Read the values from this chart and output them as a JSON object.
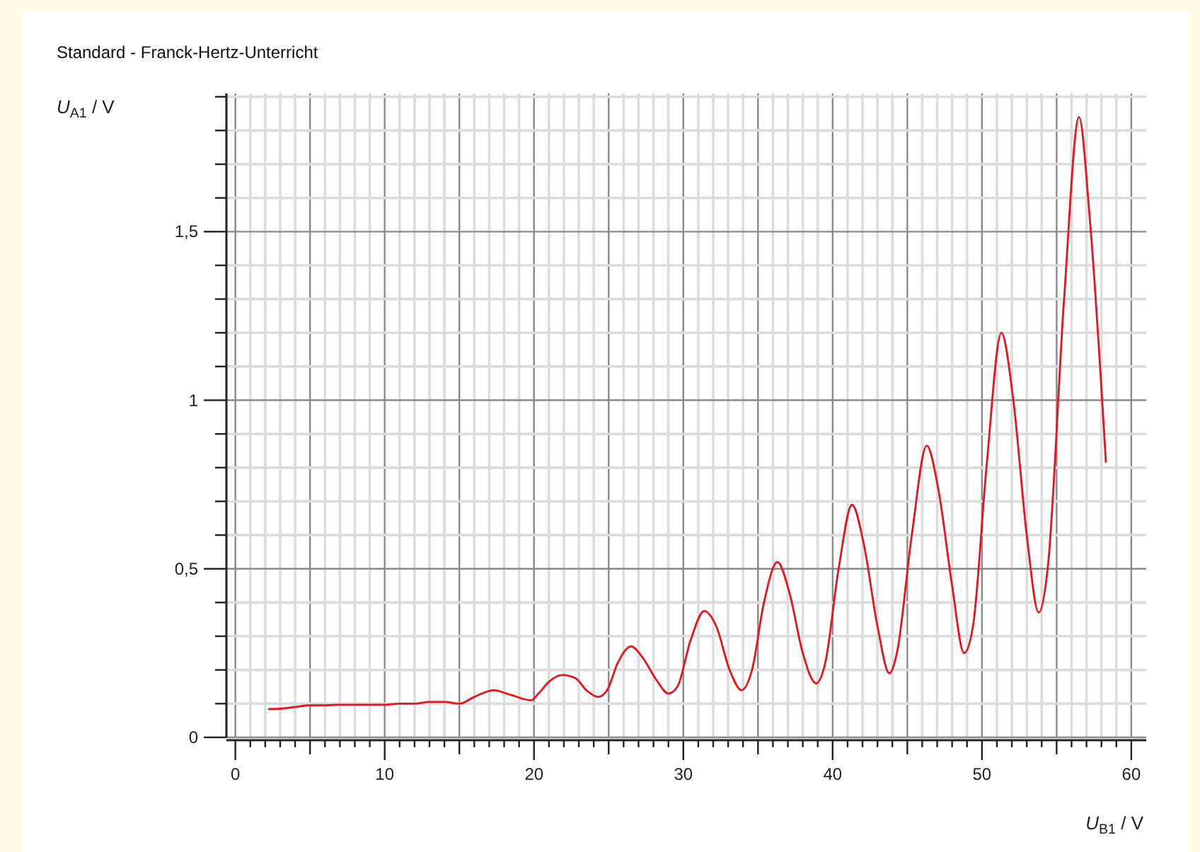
{
  "chart_data": {
    "type": "line",
    "title": "Standard - Franck-Hertz-Unterricht",
    "xlabel": "U$_{B1}$ / V",
    "ylabel": "U$_{A1}$ / V",
    "x": [
      2.2,
      3,
      4,
      5,
      6,
      7,
      8,
      9,
      10,
      11,
      12,
      13,
      14,
      15,
      16,
      17.3,
      18.5,
      19.8,
      20.3,
      21,
      21.9,
      22.8,
      23.5,
      24.3,
      24.9,
      25.6,
      26.5,
      27.3,
      28.2,
      29,
      29.6,
      30.5,
      31.4,
      32.2,
      33.1,
      33.9,
      34.6,
      35.4,
      36.3,
      37.1,
      38,
      38.9,
      39.5,
      40.4,
      41.3,
      42.1,
      43,
      43.8,
      44.3,
      45.3,
      46.3,
      47.1,
      48,
      48.8,
      49.4,
      50.3,
      51.3,
      52.1,
      53,
      53.8,
      54.4,
      55.5,
      56.5,
      57.2,
      58.3
    ],
    "series": [
      {
        "color": "#e8141c",
        "values": [
          0.084,
          0.085,
          0.09,
          0.095,
          0.095,
          0.097,
          0.097,
          0.097,
          0.097,
          0.1,
          0.1,
          0.105,
          0.105,
          0.1,
          0.12,
          0.14,
          0.125,
          0.11,
          0.13,
          0.165,
          0.185,
          0.175,
          0.14,
          0.12,
          0.14,
          0.22,
          0.27,
          0.235,
          0.17,
          0.13,
          0.15,
          0.29,
          0.375,
          0.33,
          0.2,
          0.14,
          0.2,
          0.4,
          0.52,
          0.43,
          0.25,
          0.16,
          0.22,
          0.5,
          0.69,
          0.57,
          0.33,
          0.19,
          0.25,
          0.6,
          0.865,
          0.73,
          0.45,
          0.25,
          0.33,
          0.8,
          1.2,
          1.0,
          0.6,
          0.37,
          0.5,
          1.3,
          1.84,
          1.55,
          0.815
        ]
      }
    ],
    "xlim": [
      -0.6,
      61
    ],
    "xticks": [
      0,
      {
        "value": 1,
        "label": null
      },
      {
        "value": 2,
        "label": null
      },
      {
        "value": 3,
        "label": null
      },
      {
        "value": 4,
        "label": null
      },
      {
        "value": 5,
        "label": null
      },
      {
        "value": 6,
        "label": null
      },
      {
        "value": 7,
        "label": null
      },
      {
        "value": 8,
        "label": null
      },
      {
        "value": 9,
        "label": null
      },
      10,
      {
        "value": 11,
        "label": null
      },
      {
        "value": 12,
        "label": null
      },
      {
        "value": 13,
        "label": null
      },
      {
        "value": 14,
        "label": null
      },
      {
        "value": 15,
        "label": null
      },
      {
        "value": 16,
        "label": null
      },
      {
        "value": 17,
        "label": null
      },
      {
        "value": 18,
        "label": null
      },
      {
        "value": 19,
        "label": null
      },
      20,
      {
        "value": 21,
        "label": null
      },
      {
        "value": 22,
        "label": null
      },
      {
        "value": 23,
        "label": null
      },
      {
        "value": 24,
        "label": null
      },
      {
        "value": 25,
        "label": null
      },
      {
        "value": 26,
        "label": null
      },
      {
        "value": 27,
        "label": null
      },
      {
        "value": 28,
        "label": null
      },
      {
        "value": 29,
        "label": null
      },
      30,
      {
        "value": 31,
        "label": null
      },
      {
        "value": 32,
        "label": null
      },
      {
        "value": 33,
        "label": null
      },
      {
        "value": 34,
        "label": null
      },
      {
        "value": 35,
        "label": null
      },
      {
        "value": 36,
        "label": null
      },
      {
        "value": 37,
        "label": null
      },
      {
        "value": 38,
        "label": null
      },
      {
        "value": 39,
        "label": null
      },
      40,
      {
        "value": 41,
        "label": null
      },
      {
        "value": 42,
        "label": null
      },
      {
        "value": 43,
        "label": null
      },
      {
        "value": 44,
        "label": null
      },
      {
        "value": 45,
        "label": null
      },
      {
        "value": 46,
        "label": null
      },
      {
        "value": 47,
        "label": null
      },
      {
        "value": 48,
        "label": null
      },
      {
        "value": 49,
        "label": null
      },
      50,
      {
        "value": 51,
        "label": null
      },
      {
        "value": 52,
        "label": null
      },
      {
        "value": 53,
        "label": null
      },
      {
        "value": 54,
        "label": null
      },
      {
        "value": 55,
        "label": null
      },
      {
        "value": 56,
        "label": null
      },
      {
        "value": 57,
        "label": null
      },
      {
        "value": 58,
        "label": null
      },
      {
        "value": 59,
        "label": null
      },
      60
    ],
    "ylim": [
      0,
      1.91
    ],
    "yticks": [
      0,
      {
        "value": 0.1,
        "label": null
      },
      {
        "value": 0.2,
        "label": null
      },
      {
        "value": 0.3,
        "label": null
      },
      {
        "value": 0.4,
        "label": null
      },
      {
        "value": 0.5,
        "label": "0,5"
      },
      {
        "value": 0.6,
        "label": null
      },
      {
        "value": 0.7,
        "label": null
      },
      {
        "value": 0.8,
        "label": null
      },
      {
        "value": 0.9,
        "label": null
      },
      1,
      {
        "value": 1.1,
        "label": null
      },
      {
        "value": 1.2,
        "label": null
      },
      {
        "value": 1.3,
        "label": null
      },
      {
        "value": 1.4,
        "label": null
      },
      {
        "value": 1.5,
        "label": "1,5"
      },
      {
        "value": 1.6,
        "label": null
      },
      {
        "value": 1.7,
        "label": null
      },
      {
        "value": 1.8,
        "label": null
      },
      {
        "value": 1.9,
        "label": null
      }
    ],
    "grid": true,
    "line_style": "solid"
  }
}
